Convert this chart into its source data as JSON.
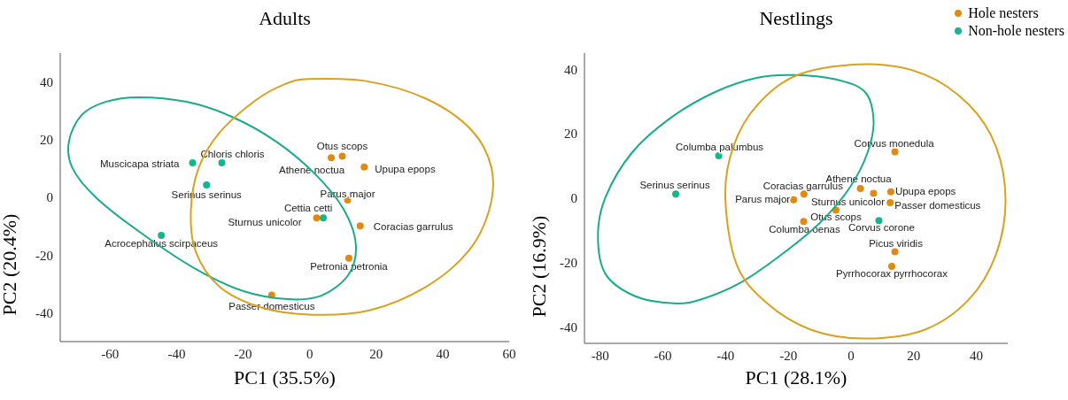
{
  "chart_data": [
    {
      "type": "scatter",
      "title": "Adults",
      "xlabel": "PC1 (35.5%)",
      "ylabel": "PC2 (20.4%)",
      "xlim": [
        -75,
        60
      ],
      "xticks": [
        -60,
        -40,
        -20,
        0,
        20,
        40,
        60
      ],
      "ylim": [
        -50,
        50
      ],
      "yticks": [
        -40,
        -20,
        0,
        20,
        40
      ],
      "grid": false,
      "marker": "circle",
      "series": [
        {
          "color": "#e08a12",
          "x": [
            6.5,
            9.8,
            16.4,
            11.4,
            2.1,
            15.2,
            11.8,
            -11.4
          ],
          "values": [
            13.7,
            14.3,
            10.5,
            -0.9,
            -7.1,
            -9.9,
            -21.1,
            -33.9
          ]
        },
        {
          "color": "#16b58c",
          "x": [
            -35.2,
            -26.4,
            -31.0,
            -44.6,
            4.1
          ],
          "values": [
            12.0,
            12.0,
            4.3,
            -13.2,
            -7.1
          ]
        }
      ],
      "annotations": [
        {
          "text": "Muscicapa striata",
          "x": -35.2,
          "y": 12.0
        },
        {
          "text": "Chloris chloris",
          "x": -26.4,
          "y": 12.0
        },
        {
          "text": "Serinus serinus",
          "x": -31.0,
          "y": 4.3
        },
        {
          "text": "Acrocephalus scirpaceus",
          "x": -44.6,
          "y": -13.2
        },
        {
          "text": "Cettia cetti",
          "x": 4.1,
          "y": -7.1
        },
        {
          "text": "Athene noctua",
          "x": 6.5,
          "y": 13.7
        },
        {
          "text": "Otus scops",
          "x": 9.8,
          "y": 14.3
        },
        {
          "text": "Upupa epops",
          "x": 16.4,
          "y": 10.5
        },
        {
          "text": "Parus major",
          "x": 11.4,
          "y": -0.9
        },
        {
          "text": "Sturnus unicolor",
          "x": 2.1,
          "y": -7.1
        },
        {
          "text": "Coracias garrulus",
          "x": 15.2,
          "y": -9.9
        },
        {
          "text": "Petronia petronia",
          "x": 11.8,
          "y": -21.1
        },
        {
          "text": "Passer domesticus",
          "x": -11.4,
          "y": -33.9
        }
      ]
    },
    {
      "type": "scatter",
      "title": "Nestlings",
      "xlabel": "PC1 (28.1%)",
      "ylabel": "PC2 (16.9%)",
      "xlim": [
        -85,
        50
      ],
      "xticks": [
        -80,
        -60,
        -40,
        -20,
        0,
        20,
        40
      ],
      "ylim": [
        -45,
        45
      ],
      "yticks": [
        -40,
        -20,
        0,
        20,
        40
      ],
      "grid": false,
      "marker": "circle",
      "legend": "top right",
      "series": [
        {
          "name": "Hole nesters",
          "color": "#e08a12",
          "x": [
            14.0,
            3.0,
            7.2,
            -4.8,
            -15.1,
            -15.0,
            -18.3,
            12.7,
            12.5,
            14.0,
            13.0
          ],
          "values": [
            14.4,
            3.0,
            1.5,
            -3.7,
            -7.2,
            1.3,
            -0.5,
            2.0,
            -1.4,
            -16.6,
            -21.1
          ]
        },
        {
          "name": "Non-hole nesters",
          "color": "#16b58c",
          "x": [
            -42.2,
            -55.9,
            8.9
          ],
          "values": [
            13.2,
            1.3,
            -6.9
          ]
        }
      ],
      "annotations": [
        {
          "text": "Columba palumbus",
          "x": -42.2,
          "y": 13.2
        },
        {
          "text": "Serinus serinus",
          "x": -55.9,
          "y": 1.3
        },
        {
          "text": "Corvus corone",
          "x": 8.9,
          "y": -6.9
        },
        {
          "text": "Corvus monedula",
          "x": 14.0,
          "y": 14.4
        },
        {
          "text": "Athene noctua",
          "x": 3.0,
          "y": 3.0
        },
        {
          "text": "Sturnus unicolor",
          "x": 7.2,
          "y": 1.5
        },
        {
          "text": "Otus scops",
          "x": -4.8,
          "y": -3.7
        },
        {
          "text": "Columba oenas",
          "x": -15.1,
          "y": -7.2
        },
        {
          "text": "Coracias garrulus",
          "x": -15.0,
          "y": 1.3
        },
        {
          "text": "Parus major",
          "x": -18.3,
          "y": -0.5
        },
        {
          "text": "Upupa epops",
          "x": 12.7,
          "y": 2.0
        },
        {
          "text": "Passer domesticus",
          "x": 12.5,
          "y": -1.4
        },
        {
          "text": "Picus viridis",
          "x": 14.0,
          "y": -16.6
        },
        {
          "text": "Pyrrhocorax pyrrhocorax",
          "x": 13.0,
          "y": -21.1
        }
      ]
    }
  ]
}
